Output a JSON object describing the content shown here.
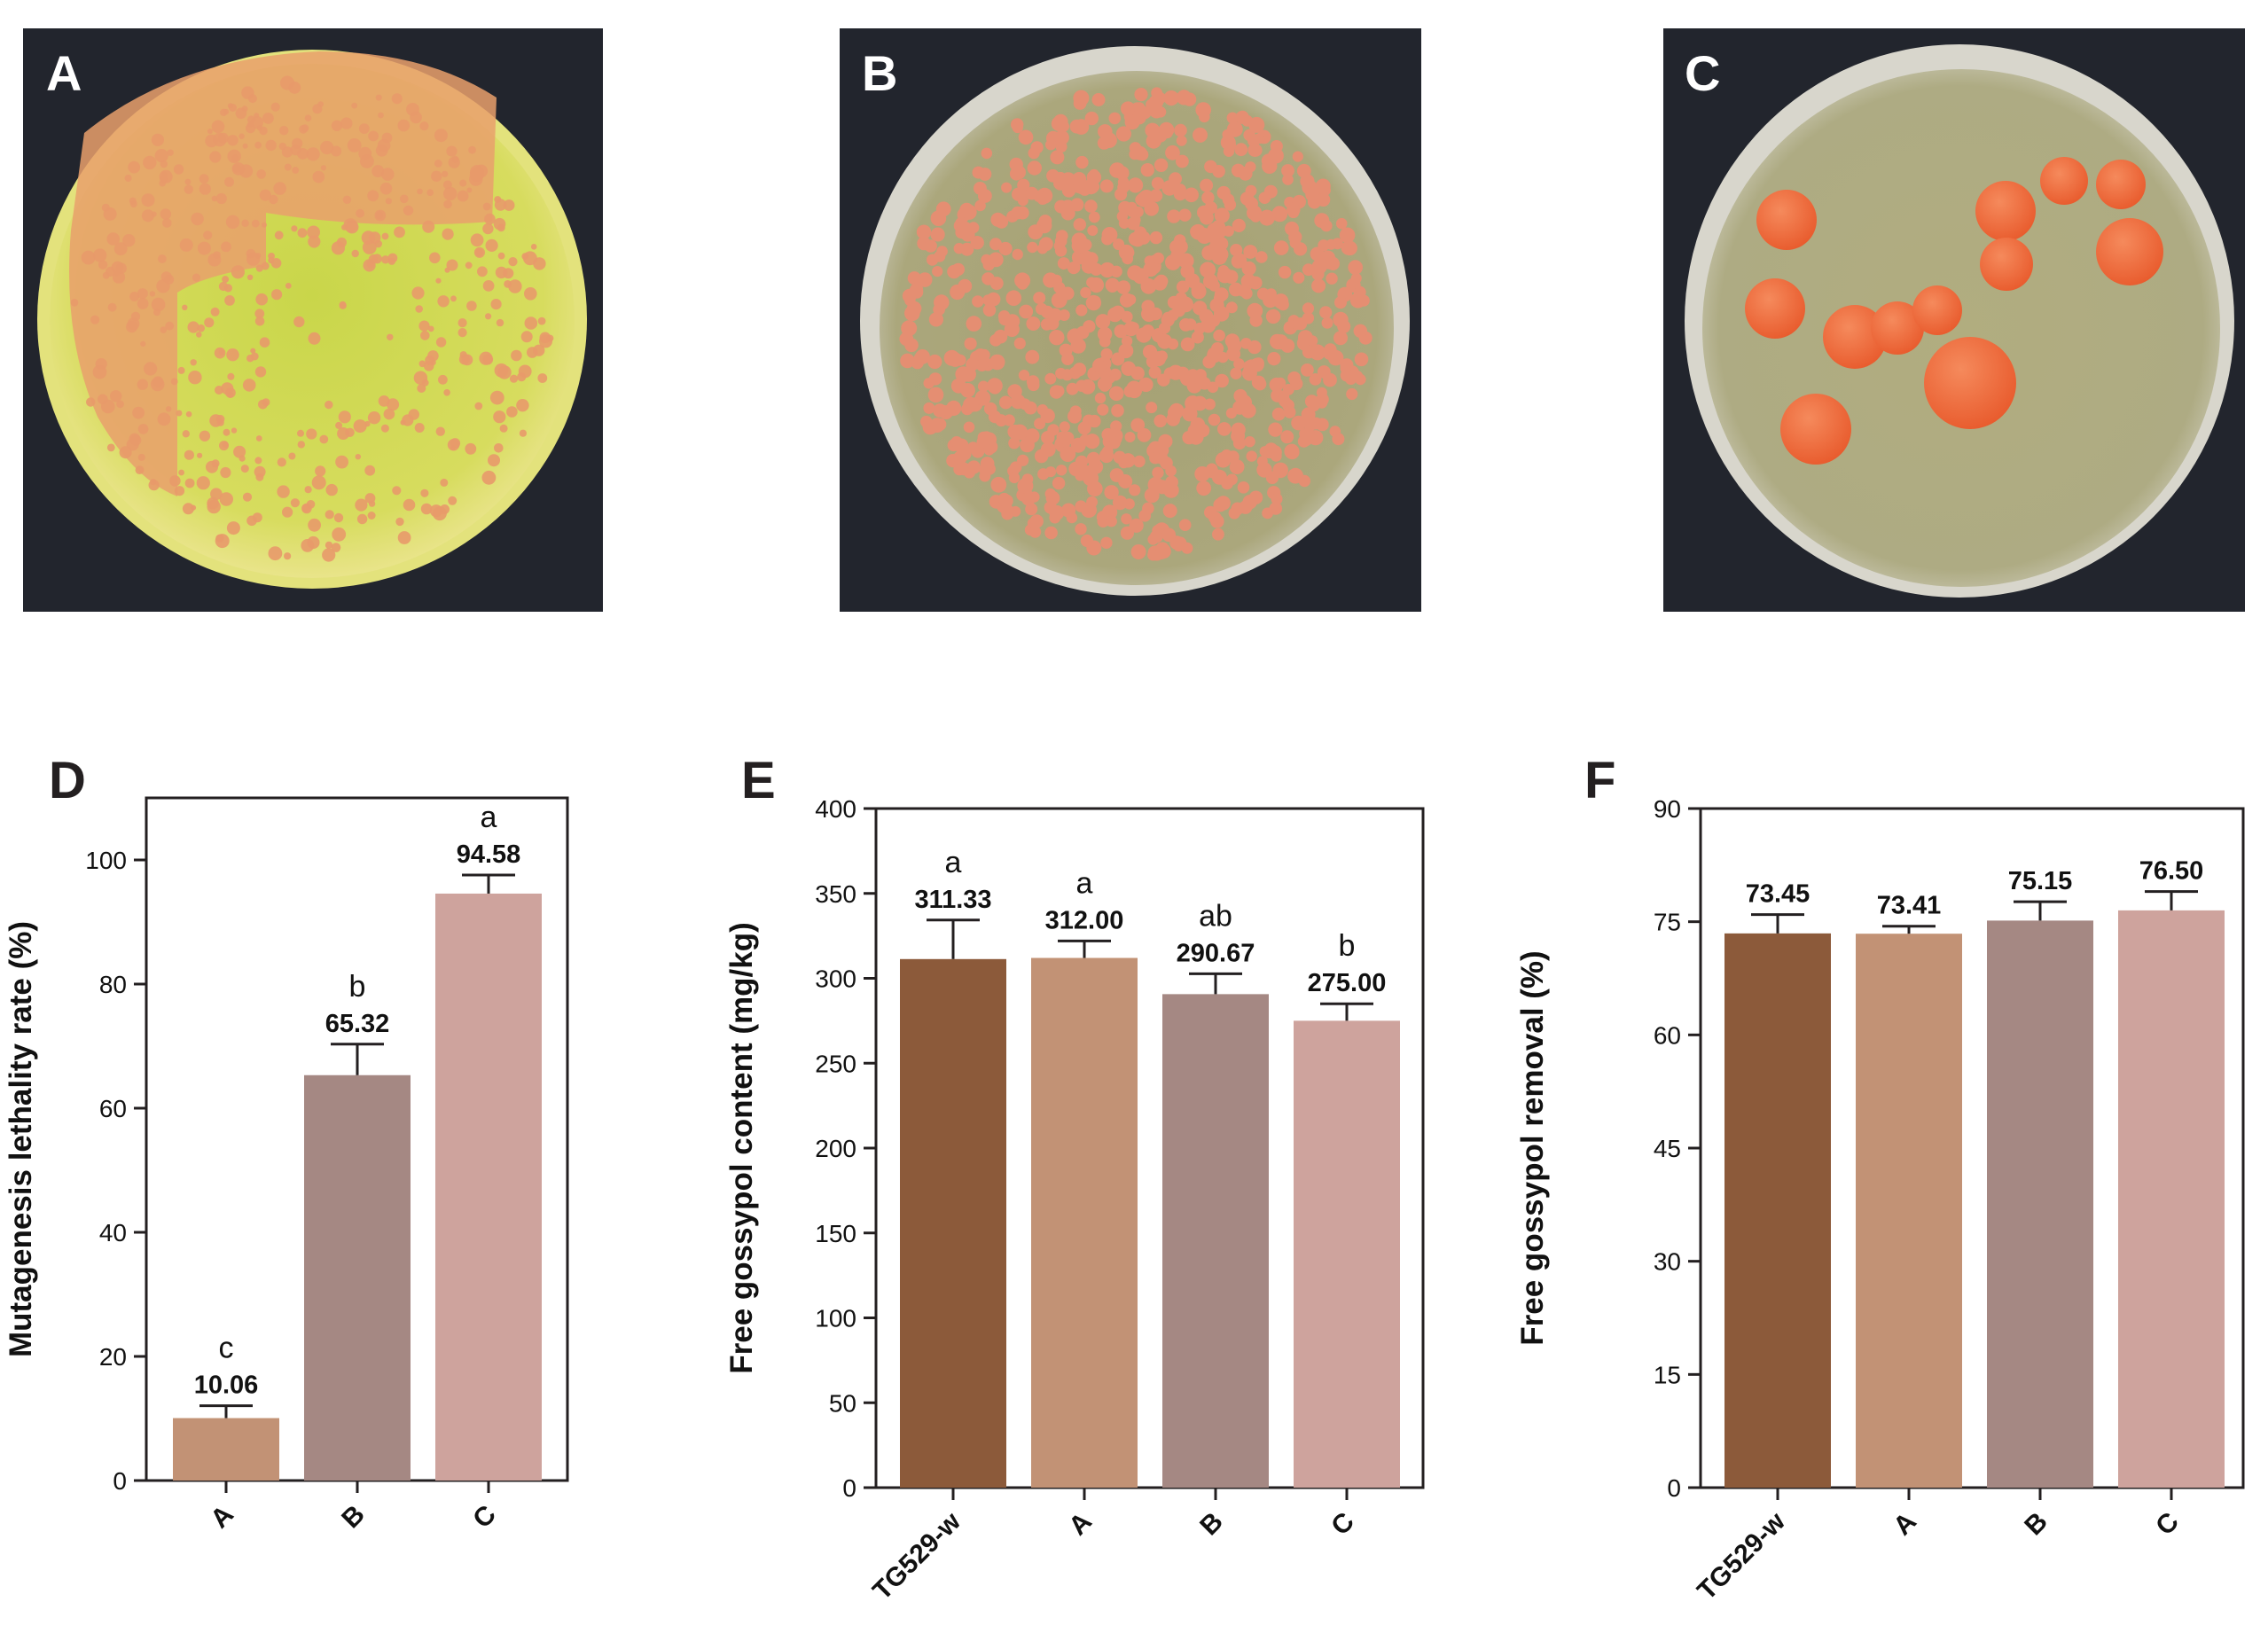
{
  "colors": {
    "photo_bg": "#22252d",
    "plate_a_agar": "#d6dd5c",
    "plate_bc_agar": "#a8a478",
    "colony": "#e7926f",
    "colony_c": "#ef6a3c",
    "bar_tg529w": "#8c5a3a",
    "bar_a": "#c29275",
    "bar_b": "#a58883",
    "bar_c": "#cea39d"
  },
  "photo_panels": [
    {
      "letter": "A"
    },
    {
      "letter": "B"
    },
    {
      "letter": "C"
    }
  ],
  "chart_data": [
    {
      "panel": "D",
      "type": "bar",
      "categories": [
        "A",
        "B",
        "C"
      ],
      "values": [
        10.06,
        65.32,
        94.58
      ],
      "value_labels": [
        "10.06",
        "65.32",
        "94.58"
      ],
      "error": [
        2.0,
        5.0,
        3.0
      ],
      "significance": [
        "c",
        "b",
        "a"
      ],
      "ylabel": "Mutagenesis lethality rate (%)",
      "ylim": [
        0,
        110
      ],
      "yticks": [
        0,
        20,
        40,
        60,
        80,
        100
      ],
      "colors": [
        "#c29275",
        "#a58883",
        "#cea39d"
      ]
    },
    {
      "panel": "E",
      "type": "bar",
      "categories": [
        "TG529-w",
        "A",
        "B",
        "C"
      ],
      "values": [
        311.33,
        312.0,
        290.67,
        275.0
      ],
      "value_labels": [
        "311.33",
        "312.00",
        "290.67",
        "275.00"
      ],
      "error": [
        23,
        10,
        12,
        10
      ],
      "significance": [
        "a",
        "a",
        "ab",
        "b"
      ],
      "ylabel": "Free gossypol content (mg/kg)",
      "ylim": [
        0,
        400
      ],
      "yticks": [
        0,
        50,
        100,
        150,
        200,
        250,
        300,
        350,
        400
      ],
      "colors": [
        "#8c5a3a",
        "#c29275",
        "#a58883",
        "#cea39d"
      ]
    },
    {
      "panel": "F",
      "type": "bar",
      "categories": [
        "TG529-w",
        "A",
        "B",
        "C"
      ],
      "values": [
        73.45,
        73.41,
        75.15,
        76.5
      ],
      "value_labels": [
        "73.45",
        "73.41",
        "75.15",
        "76.50"
      ],
      "error": [
        2.5,
        1.0,
        2.5,
        2.5
      ],
      "significance": [
        "",
        "",
        "",
        ""
      ],
      "ylabel": "Free gossypol removal (%)",
      "ylim": [
        0,
        90
      ],
      "yticks": [
        0,
        15,
        30,
        45,
        60,
        75,
        90
      ],
      "colors": [
        "#8c5a3a",
        "#c29275",
        "#a58883",
        "#cea39d"
      ]
    }
  ]
}
